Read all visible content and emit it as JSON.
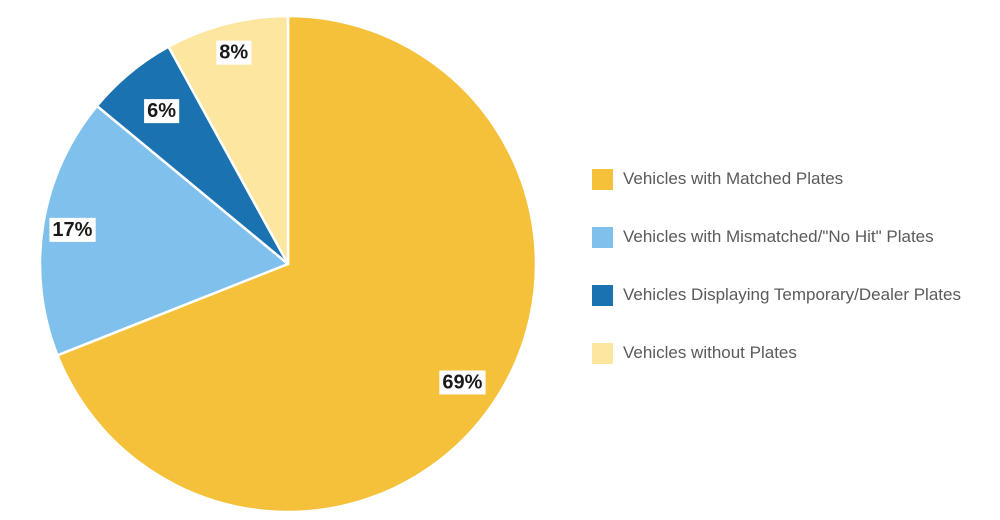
{
  "chart_data": {
    "type": "pie",
    "title": "",
    "legend_position": "right",
    "slices": [
      {
        "name": "Vehicles with Matched Plates",
        "value": 69,
        "label": "69%",
        "color": "#F5C03A"
      },
      {
        "name": "Vehicles with Mismatched/\"No Hit\" Plates",
        "value": 17,
        "label": "17%",
        "color": "#80C0EC"
      },
      {
        "name": "Vehicles Displaying Temporary/Dealer Plates",
        "value": 6,
        "label": "6%",
        "color": "#1B72B0"
      },
      {
        "name": "Vehicles without Plates",
        "value": 8,
        "label": "8%",
        "color": "#FDE6A0"
      }
    ]
  }
}
